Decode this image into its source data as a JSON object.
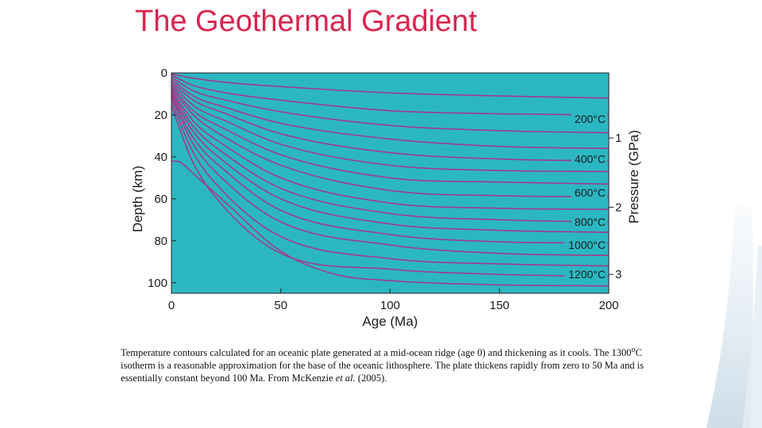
{
  "slide": {
    "title": "The Geothermal Gradient",
    "caption_parts": {
      "text1": "Temperature contours calculated for an oceanic plate generated at a mid-ocean ridge (age 0) and thickening as it cools. The 1300",
      "sup": "o",
      "text2": "C isotherm is a reasonable approximation for the base of the oceanic lithosphere. The plate thickens rapidly from zero to 50 Ma and is essentially constant beyond 100 Ma. From McKenzie ",
      "italic": "et al.",
      "text3": " (2005)."
    }
  },
  "chart_data": {
    "type": "line",
    "xlabel": "Age (Ma)",
    "ylabel": "Depth (km)",
    "y2label": "Pressure (GPa)",
    "xlim": [
      0,
      200
    ],
    "ylim": [
      0,
      105
    ],
    "y_inverted": true,
    "x_ticks": [
      0,
      50,
      100,
      150,
      200
    ],
    "y_ticks": [
      0,
      20,
      40,
      60,
      80,
      100
    ],
    "pressure_ticks": [
      {
        "label": "1",
        "depth": 31
      },
      {
        "label": "2",
        "depth": 64
      },
      {
        "label": "3",
        "depth": 96
      }
    ],
    "isotherm_labels": [
      {
        "label": "200°C",
        "depth": 22
      },
      {
        "label": "400°C",
        "depth": 41
      },
      {
        "label": "600°C",
        "depth": 57
      },
      {
        "label": "800°C",
        "depth": 71
      },
      {
        "label": "1000°C",
        "depth": 82
      },
      {
        "label": "1200°C",
        "depth": 96
      }
    ],
    "background_color": "#2bb7c2",
    "line_color": "#a23a8a",
    "series": [
      {
        "x": [
          0,
          10,
          25,
          50,
          100,
          150,
          200
        ],
        "y": [
          0.5,
          2.5,
          4.5,
          6.5,
          9.5,
          11.0,
          12.0
        ]
      },
      {
        "x": [
          0,
          10,
          25,
          50,
          100,
          150,
          200
        ],
        "y": [
          1,
          6,
          9.5,
          13,
          18,
          19.5,
          20
        ]
      },
      {
        "x": [
          0,
          10,
          25,
          50,
          100,
          150,
          200
        ],
        "y": [
          2,
          8.5,
          13,
          18.5,
          25,
          27.5,
          28.5
        ]
      },
      {
        "x": [
          0,
          10,
          25,
          50,
          100,
          150,
          200
        ],
        "y": [
          3,
          11,
          16.5,
          24,
          31.5,
          35,
          36
        ]
      },
      {
        "x": [
          0,
          10,
          25,
          50,
          100,
          150,
          200
        ],
        "y": [
          4,
          13,
          19.5,
          29,
          38,
          41,
          42
        ]
      },
      {
        "x": [
          0,
          10,
          25,
          50,
          100,
          150,
          200
        ],
        "y": [
          5,
          15.5,
          23,
          34,
          44,
          46.5,
          47
        ]
      },
      {
        "x": [
          0,
          10,
          25,
          50,
          100,
          150,
          200
        ],
        "y": [
          6,
          18,
          27,
          39,
          50,
          52,
          53
        ]
      },
      {
        "x": [
          0,
          10,
          25,
          50,
          100,
          150,
          200
        ],
        "y": [
          7,
          20,
          31,
          44,
          56,
          58.5,
          59
        ]
      },
      {
        "x": [
          0,
          10,
          25,
          50,
          100,
          150,
          200
        ],
        "y": [
          8,
          23,
          35,
          50,
          62,
          64.5,
          65
        ]
      },
      {
        "x": [
          0,
          10,
          25,
          50,
          100,
          150,
          200
        ],
        "y": [
          9,
          25.5,
          39,
          55,
          67,
          70,
          71
        ]
      },
      {
        "x": [
          0,
          10,
          25,
          50,
          100,
          150,
          200
        ],
        "y": [
          10,
          28,
          43,
          60,
          72,
          75,
          76
        ]
      },
      {
        "x": [
          0,
          10,
          25,
          50,
          100,
          150,
          200
        ],
        "y": [
          11,
          31,
          47,
          65.5,
          77,
          80.5,
          81
        ]
      },
      {
        "x": [
          0,
          10,
          25,
          50,
          100,
          150,
          200
        ],
        "y": [
          12,
          34,
          52,
          71,
          82,
          86,
          87
        ]
      },
      {
        "x": [
          0,
          10,
          25,
          50,
          100,
          150,
          200
        ],
        "y": [
          14,
          38,
          58,
          78,
          88.5,
          91,
          92
        ]
      },
      {
        "x": [
          0,
          10,
          25,
          50,
          100,
          150,
          200
        ],
        "y": [
          16,
          43,
          65,
          86,
          93.5,
          96,
          97
        ]
      },
      {
        "x": [
          0,
          4,
          10,
          25,
          50,
          75,
          100,
          150,
          200
        ],
        "y": [
          42,
          42.5,
          48,
          62,
          85,
          96,
          99,
          101,
          101.5
        ]
      }
    ]
  }
}
